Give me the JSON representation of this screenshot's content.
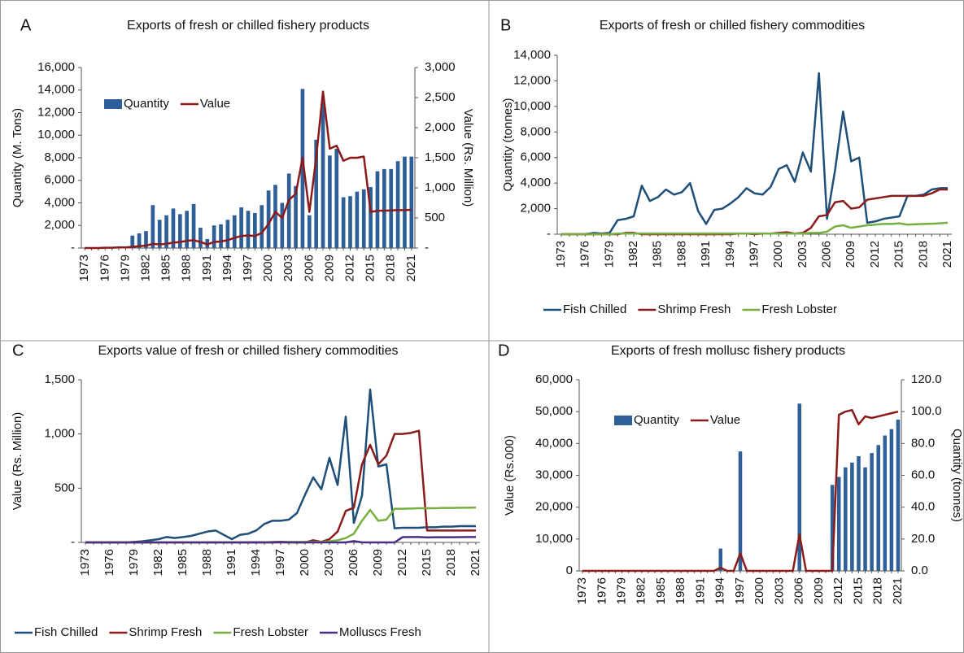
{
  "chart_data": [
    {
      "type": "combo",
      "label": "A",
      "title": "Exports of fresh or chilled fishery products",
      "y_label": "Quantity (M. Tons)",
      "y2_label": "Value (Rs. Million)",
      "legend": "upper left",
      "categories": [
        "1973",
        null,
        null,
        "1976",
        null,
        null,
        "1979",
        null,
        null,
        "1982",
        null,
        null,
        "1985",
        null,
        null,
        "1988",
        null,
        null,
        "1991",
        null,
        null,
        "1994",
        null,
        null,
        "1997",
        null,
        null,
        "2000",
        null,
        null,
        "2003",
        null,
        null,
        "2006",
        null,
        null,
        "2009",
        null,
        null,
        "2012",
        null,
        null,
        "2015",
        null,
        null,
        "2018",
        null,
        null,
        "2021"
      ],
      "ylim": [
        0,
        16000
      ],
      "yticks": [
        {
          "value": 0,
          "label": "-"
        },
        {
          "value": 2000,
          "label": "2,000"
        },
        {
          "value": 4000,
          "label": "4,000"
        },
        {
          "value": 6000,
          "label": "6,000"
        },
        {
          "value": 8000,
          "label": "8,000"
        },
        {
          "value": 10000,
          "label": "10,000"
        },
        {
          "value": 12000,
          "label": "12,000"
        },
        {
          "value": 14000,
          "label": "14,000"
        },
        {
          "value": 16000,
          "label": "16,000"
        }
      ],
      "y2lim": [
        0,
        3000
      ],
      "y2ticks": [
        {
          "value": 0,
          "label": "-"
        },
        500,
        {
          "value": 1000,
          "label": "1,000"
        },
        {
          "value": 1500,
          "label": "1,500"
        },
        {
          "value": 2000,
          "label": "2,000"
        },
        {
          "value": 2500,
          "label": "2,500"
        },
        {
          "value": 3000,
          "label": "3,000"
        }
      ],
      "series": [
        {
          "name": "Quantity",
          "type": "bar",
          "color": "#2e5f98",
          "values": [
            0,
            0,
            0,
            0,
            0,
            0,
            0,
            1100,
            1300,
            1500,
            3800,
            2500,
            2900,
            3500,
            3000,
            3300,
            3900,
            1800,
            800,
            2000,
            2100,
            2500,
            2900,
            3600,
            3300,
            3100,
            3800,
            5100,
            5600,
            4000,
            6600,
            5500,
            14100,
            2900,
            9600,
            13000,
            8200,
            8800,
            4500,
            4600,
            5000,
            5200,
            5400,
            6800,
            7000,
            7000,
            7700,
            8100,
            8100
          ]
        },
        {
          "name": "Value",
          "type": "line",
          "axis": "y2",
          "color": "#8b1a1a",
          "values": [
            0,
            0,
            0,
            5,
            5,
            10,
            10,
            20,
            30,
            40,
            70,
            60,
            70,
            90,
            100,
            120,
            130,
            100,
            60,
            100,
            110,
            130,
            170,
            200,
            210,
            200,
            250,
            400,
            600,
            500,
            800,
            900,
            1500,
            600,
            1500,
            2600,
            1650,
            1700,
            1450,
            1500,
            1500,
            1520,
            600,
            620,
            620,
            625,
            630,
            630,
            635
          ]
        }
      ]
    },
    {
      "type": "line",
      "label": "B",
      "title": "Exports of fresh or chilled fishery  commodities",
      "y_label": "Quantity (tonnes)",
      "legend": "bottom",
      "categories": [
        "1973",
        null,
        null,
        "1976",
        null,
        null,
        "1979",
        null,
        null,
        "1982",
        null,
        null,
        "1985",
        null,
        null,
        "1988",
        null,
        null,
        "1991",
        null,
        null,
        "1994",
        null,
        null,
        "1997",
        null,
        null,
        "2000",
        null,
        null,
        "2003",
        null,
        null,
        "2006",
        null,
        null,
        "2009",
        null,
        null,
        "2012",
        null,
        null,
        "2015",
        null,
        null,
        "2018",
        null,
        null,
        "2021"
      ],
      "ylim": [
        0,
        14000
      ],
      "yticks": [
        {
          "value": 0,
          "label": "-"
        },
        {
          "value": 2000,
          "label": "2,000"
        },
        {
          "value": 4000,
          "label": "4,000"
        },
        {
          "value": 6000,
          "label": "6,000"
        },
        {
          "value": 8000,
          "label": "8,000"
        },
        {
          "value": 10000,
          "label": "10,000"
        },
        {
          "value": 12000,
          "label": "12,000"
        },
        {
          "value": 14000,
          "label": "14,000"
        }
      ],
      "series": [
        {
          "name": "Fish Chilled",
          "type": "line",
          "color": "#1f4e79",
          "values": [
            0,
            0,
            0,
            0,
            100,
            50,
            100,
            1100,
            1200,
            1400,
            3800,
            2600,
            2900,
            3500,
            3100,
            3300,
            4000,
            1800,
            800,
            1900,
            2000,
            2400,
            2900,
            3600,
            3200,
            3100,
            3700,
            5100,
            5400,
            4100,
            6400,
            4900,
            12600,
            1200,
            5000,
            9600,
            5700,
            6000,
            900,
            1000,
            1200,
            1300,
            1400,
            3000,
            3000,
            3100,
            3500,
            3600,
            3600
          ]
        },
        {
          "name": "Shrimp Fresh",
          "type": "line",
          "color": "#8b1c1c",
          "values": [
            0,
            0,
            0,
            0,
            0,
            0,
            0,
            0,
            100,
            100,
            0,
            0,
            0,
            0,
            0,
            0,
            0,
            0,
            0,
            0,
            0,
            0,
            50,
            50,
            0,
            50,
            50,
            100,
            150,
            50,
            100,
            500,
            1400,
            1500,
            2500,
            2600,
            2000,
            2100,
            2700,
            2800,
            2900,
            3000,
            3000,
            3000,
            3000,
            3000,
            3200,
            3500,
            3500
          ]
        },
        {
          "name": "Fresh Lobster",
          "type": "line",
          "color": "#77b041",
          "values": [
            0,
            0,
            0,
            0,
            0,
            0,
            0,
            50,
            50,
            50,
            50,
            50,
            50,
            50,
            50,
            50,
            50,
            50,
            50,
            50,
            50,
            50,
            50,
            50,
            50,
            50,
            50,
            50,
            50,
            50,
            50,
            100,
            100,
            200,
            600,
            700,
            500,
            600,
            700,
            750,
            800,
            800,
            850,
            750,
            780,
            800,
            820,
            850,
            900
          ]
        }
      ]
    },
    {
      "type": "line",
      "label": "C",
      "title": "Exports value of fresh or chilled fishery  commodities",
      "y_label": "Value (Rs. Million)",
      "legend": "bottom",
      "categories": [
        "1973",
        null,
        null,
        "1976",
        null,
        null,
        "1979",
        null,
        null,
        "1982",
        null,
        null,
        "1985",
        null,
        null,
        "1988",
        null,
        null,
        "1991",
        null,
        null,
        "1994",
        null,
        null,
        "1997",
        null,
        null,
        "2000",
        null,
        null,
        "2003",
        null,
        null,
        "2006",
        null,
        null,
        "2009",
        null,
        null,
        "2012",
        null,
        null,
        "2015",
        null,
        null,
        "2018",
        null,
        null,
        "2021"
      ],
      "ylim": [
        0,
        1500
      ],
      "yticks": [
        {
          "value": 0,
          "label": "-"
        },
        500,
        {
          "value": 1000,
          "label": "1,000"
        },
        {
          "value": 1500,
          "label": "1,500"
        }
      ],
      "series": [
        {
          "name": "Fish Chilled",
          "type": "line",
          "color": "#1f4e79",
          "values": [
            0,
            0,
            0,
            0,
            0,
            0,
            5,
            10,
            20,
            30,
            50,
            40,
            50,
            60,
            80,
            100,
            110,
            70,
            30,
            70,
            80,
            110,
            170,
            200,
            200,
            210,
            270,
            440,
            600,
            490,
            780,
            530,
            1160,
            180,
            430,
            1410,
            700,
            720,
            130,
            135,
            135,
            135,
            140,
            140,
            145,
            145,
            150,
            150,
            150
          ]
        },
        {
          "name": "Shrimp Fresh",
          "type": "line",
          "color": "#8b1c1c",
          "values": [
            0,
            0,
            0,
            0,
            0,
            0,
            0,
            0,
            0,
            0,
            0,
            0,
            0,
            0,
            0,
            0,
            0,
            0,
            0,
            0,
            0,
            0,
            0,
            0,
            0,
            0,
            0,
            0,
            20,
            5,
            30,
            100,
            290,
            320,
            720,
            900,
            720,
            800,
            1000,
            1000,
            1010,
            1030,
            110,
            110,
            110,
            110,
            110,
            110,
            110
          ]
        },
        {
          "name": "Fresh Lobster",
          "type": "line",
          "color": "#77b041",
          "values": [
            0,
            0,
            0,
            0,
            0,
            0,
            0,
            0,
            0,
            0,
            0,
            0,
            0,
            0,
            0,
            0,
            0,
            0,
            0,
            0,
            0,
            0,
            0,
            5,
            5,
            5,
            5,
            5,
            5,
            5,
            10,
            20,
            40,
            80,
            200,
            300,
            200,
            210,
            310,
            310,
            312,
            315,
            315,
            315,
            318,
            318,
            320,
            320,
            322
          ]
        },
        {
          "name": "Molluscs Fresh",
          "type": "line",
          "color": "#4b2e83",
          "values": [
            0,
            0,
            0,
            0,
            0,
            0,
            0,
            0,
            0,
            0,
            0,
            0,
            0,
            0,
            0,
            0,
            0,
            0,
            0,
            0,
            0,
            1,
            0,
            0,
            5,
            0,
            0,
            0,
            0,
            0,
            0,
            0,
            0,
            12,
            0,
            0,
            0,
            0,
            0,
            49,
            50,
            50,
            46,
            48,
            48,
            48,
            49,
            50,
            50
          ]
        }
      ]
    },
    {
      "type": "combo",
      "label": "D",
      "title": "Exports of fresh mollusc fishery products",
      "y_label": "Value (Rs.000)",
      "y2_label": "Quantity (tonnes)",
      "legend": "upper left",
      "categories": [
        "1973",
        null,
        null,
        "1976",
        null,
        null,
        "1979",
        null,
        null,
        "1982",
        null,
        null,
        "1985",
        null,
        null,
        "1988",
        null,
        null,
        "1991",
        null,
        null,
        "1994",
        null,
        null,
        "1997",
        null,
        null,
        "2000",
        null,
        null,
        "2003",
        null,
        null,
        "2006",
        null,
        null,
        "2009",
        null,
        null,
        "2012",
        null,
        null,
        "2015",
        null,
        null,
        "2018",
        null,
        null,
        "2021"
      ],
      "ylim": [
        0,
        60000
      ],
      "yticks": [
        0,
        {
          "value": 10000,
          "label": "10,000"
        },
        {
          "value": 20000,
          "label": "20,000"
        },
        {
          "value": 30000,
          "label": "30,000"
        },
        {
          "value": 40000,
          "label": "40,000"
        },
        {
          "value": 50000,
          "label": "50,000"
        },
        {
          "value": 60000,
          "label": "60,000"
        }
      ],
      "y2lim": [
        0,
        120
      ],
      "y2ticks": [
        {
          "value": 0,
          "label": "0.0"
        },
        {
          "value": 20,
          "label": "20.0"
        },
        {
          "value": 40,
          "label": "40.0"
        },
        {
          "value": 60,
          "label": "60.0"
        },
        {
          "value": 80,
          "label": "80.0"
        },
        {
          "value": 100,
          "label": "100.0"
        },
        {
          "value": 120,
          "label": "120.0"
        }
      ],
      "series": [
        {
          "name": "Quantity",
          "type": "bar",
          "axis": "y2",
          "color": "#2e5f98",
          "values": [
            0,
            0,
            0,
            0,
            0,
            0,
            0,
            0,
            0,
            0,
            0,
            0,
            0,
            0,
            0,
            0,
            0,
            0,
            0,
            0,
            0,
            14,
            0,
            0,
            75,
            0,
            0,
            0,
            0,
            0,
            0,
            0,
            0,
            105,
            0,
            0,
            0,
            0,
            54,
            59,
            65,
            68,
            72,
            65,
            74,
            79,
            85,
            89,
            95
          ]
        },
        {
          "name": "Value",
          "type": "line",
          "color": "#8b1a1a",
          "values": [
            0,
            0,
            0,
            0,
            0,
            0,
            0,
            0,
            0,
            0,
            0,
            0,
            0,
            0,
            0,
            0,
            0,
            0,
            0,
            0,
            0,
            1000,
            0,
            0,
            5500,
            0,
            0,
            0,
            0,
            0,
            0,
            0,
            0,
            11500,
            0,
            0,
            0,
            0,
            0,
            49000,
            50000,
            50500,
            46000,
            48500,
            48000,
            48500,
            49000,
            49500,
            50000
          ]
        }
      ]
    }
  ]
}
